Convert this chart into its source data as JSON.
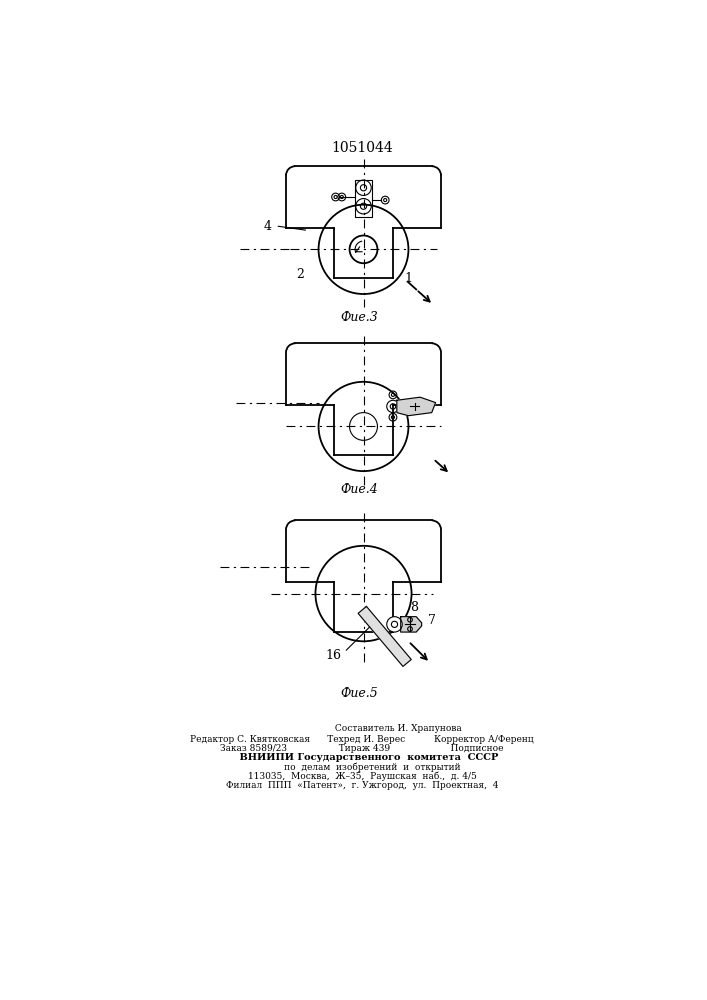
{
  "title": "1051044",
  "bg_color": "#ffffff",
  "fig3_label": "Фие.3",
  "fig4_label": "Фие.4",
  "fig5_label": "Фие.5",
  "label1": "1",
  "label2": "2",
  "label4": "4",
  "label7": "7",
  "label8": "8",
  "label16": "16",
  "footer_line1": "                         Составитель И. Храпунова",
  "footer_line2": "Редактор С. Квятковская      Техред И. Верес          Корректор А/Ференц",
  "footer_line3": "Заказ 8589/23                  Тираж 439                     Подписное",
  "footer_line4": "    ВНИИПИ Государственного  комитета  СССР",
  "footer_line5": "       по  делам  изобретений  и  открытий",
  "footer_line6": "113035,  Москва,  Ж–35,  Раушская  наб.,  д. 4/5",
  "footer_line7": "Филиал  ППП  «Патент»,  г. Ужгород,  ул.  Проектная,  4"
}
